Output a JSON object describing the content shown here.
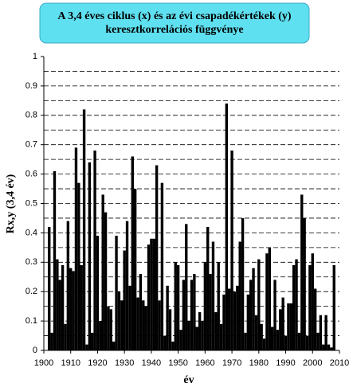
{
  "chart_data": {
    "type": "bar",
    "title": "A 3,4 éves ciklus (x) és az évi csapadékértékek (y) keresztkorrelációs függvénye",
    "xlabel": "év",
    "ylabel": "Rx,y (3,4 év)",
    "x": [
      1902,
      1903,
      1904,
      1905,
      1906,
      1907,
      1908,
      1909,
      1910,
      1911,
      1912,
      1913,
      1914,
      1915,
      1916,
      1917,
      1918,
      1919,
      1920,
      1921,
      1922,
      1923,
      1924,
      1925,
      1926,
      1927,
      1928,
      1929,
      1930,
      1931,
      1932,
      1933,
      1934,
      1935,
      1936,
      1937,
      1938,
      1939,
      1940,
      1941,
      1942,
      1943,
      1944,
      1945,
      1946,
      1947,
      1948,
      1949,
      1950,
      1951,
      1952,
      1953,
      1954,
      1955,
      1956,
      1957,
      1958,
      1959,
      1960,
      1961,
      1962,
      1963,
      1964,
      1965,
      1966,
      1967,
      1968,
      1969,
      1970,
      1971,
      1972,
      1973,
      1974,
      1975,
      1976,
      1977,
      1978,
      1979,
      1980,
      1981,
      1982,
      1983,
      1984,
      1985,
      1986,
      1987,
      1988,
      1989,
      1990,
      1991,
      1992,
      1993,
      1994,
      1995,
      1996,
      1997,
      1998,
      1999,
      2000,
      2001,
      2002,
      2003,
      2004,
      2005,
      2006,
      2007,
      2008
    ],
    "values": [
      0.42,
      0.06,
      0.61,
      0.31,
      0.24,
      0.29,
      0.09,
      0.44,
      0.28,
      0.27,
      0.69,
      0.57,
      0.29,
      0.82,
      0.02,
      0.64,
      0.06,
      0.68,
      0.39,
      0.1,
      0.53,
      0.47,
      0.15,
      0.14,
      0.03,
      0.39,
      0.2,
      0.17,
      0.34,
      0.44,
      0.22,
      0.66,
      0.55,
      0.18,
      0.26,
      0.17,
      0.15,
      0.36,
      0.38,
      0.38,
      0.63,
      0.17,
      0.57,
      0.05,
      0.22,
      0.14,
      0.03,
      0.3,
      0.29,
      0.07,
      0.24,
      0.43,
      0.1,
      0.24,
      0.26,
      0.08,
      0.13,
      0.1,
      0.3,
      0.42,
      0.26,
      0.37,
      0.13,
      0.3,
      0.09,
      0.19,
      0.84,
      0.21,
      0.68,
      0.2,
      0.22,
      0.37,
      0.45,
      0.06,
      0.19,
      0.24,
      0.28,
      0.12,
      0.31,
      0.09,
      0.04,
      0.33,
      0.35,
      0.08,
      0.24,
      0.07,
      0.14,
      0.18,
      0.05,
      0.16,
      0.16,
      0.29,
      0.31,
      0.06,
      0.53,
      0.45,
      0.05,
      0.29,
      0.33,
      0.21,
      0.06,
      0.12,
      0.02,
      0.12,
      0.02,
      0.01,
      0.29
    ],
    "color": "#000000",
    "xlim": [
      1900,
      2010
    ],
    "xticks": [
      1900,
      1910,
      1920,
      1930,
      1940,
      1950,
      1960,
      1970,
      1980,
      1990,
      2000,
      2010
    ],
    "ylim": [
      0,
      1
    ],
    "yticks": [
      0,
      0.1,
      0.2,
      0.3,
      0.4,
      0.5,
      0.6,
      0.7,
      0.8,
      0.9,
      1
    ],
    "ygrid": [
      0.05,
      0.1,
      0.15,
      0.2,
      0.25,
      0.3,
      0.35,
      0.4,
      0.45,
      0.5,
      0.55,
      0.6,
      0.65,
      0.7,
      0.75,
      0.8,
      0.85,
      0.9,
      0.95
    ],
    "grid": true
  }
}
